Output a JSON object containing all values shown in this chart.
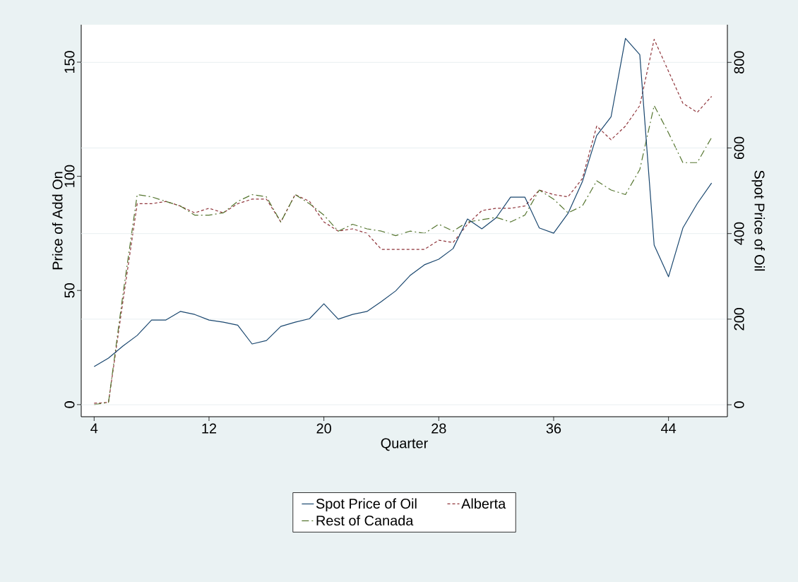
{
  "chart_data": {
    "type": "line",
    "xlabel": "Quarter",
    "ylabel": "Price of Add On",
    "y2label": "Spot Price of Oil",
    "x": [
      4,
      5,
      6,
      7,
      8,
      9,
      10,
      11,
      12,
      13,
      14,
      15,
      16,
      17,
      18,
      19,
      20,
      21,
      22,
      23,
      24,
      25,
      26,
      27,
      28,
      29,
      30,
      31,
      32,
      33,
      34,
      35,
      36,
      37,
      38,
      39,
      40,
      41,
      42,
      43,
      44,
      45,
      46,
      47
    ],
    "xlim": [
      3.1,
      48.1
    ],
    "xticks": [
      4,
      12,
      20,
      28,
      36,
      44
    ],
    "ylim": [
      -5.3,
      166.4
    ],
    "yticks": [
      0,
      50,
      100,
      150
    ],
    "y2lim": [
      -28,
      888
    ],
    "y2ticks": [
      0,
      200,
      400,
      600,
      800
    ],
    "grid": "y2",
    "legend": "bottom",
    "series": [
      {
        "name": "Spot Price of Oil",
        "color": "#1a476f",
        "axis": "y2",
        "line_style": "solid",
        "values": [
          89,
          109,
          137,
          162,
          198,
          198,
          218,
          211,
          198,
          193,
          186,
          142,
          150,
          183,
          193,
          201,
          236,
          200,
          211,
          218,
          241,
          266,
          302,
          327,
          340,
          365,
          434,
          411,
          437,
          485,
          485,
          413,
          401,
          447,
          521,
          629,
          673,
          856,
          818,
          373,
          299,
          413,
          470,
          518
        ]
      },
      {
        "name": "Alberta",
        "color": "#90353b",
        "axis": "y",
        "line_style": "dashed",
        "values": [
          0.6,
          1,
          45,
          88,
          88,
          89,
          87,
          84,
          86,
          84,
          88,
          90,
          90,
          80,
          92,
          89,
          80,
          76,
          77,
          75,
          68,
          68,
          68,
          68,
          72,
          71,
          79,
          85,
          86,
          86,
          87,
          94,
          92,
          91,
          99,
          122,
          116,
          122,
          131,
          160,
          146,
          132,
          128,
          135
        ]
      },
      {
        "name": "Rest of Canada",
        "color": "#55752f",
        "axis": "y",
        "line_style": "dashdot",
        "values": [
          0,
          1,
          48,
          92,
          91,
          89,
          87,
          83,
          83,
          84,
          89,
          92,
          91,
          80,
          92,
          88,
          83,
          76,
          79,
          77,
          76,
          74,
          76,
          75,
          79,
          76,
          80,
          81,
          82,
          80,
          83,
          94,
          90,
          84,
          87,
          98,
          94,
          92,
          103,
          131,
          119,
          106,
          106,
          117
        ]
      }
    ]
  }
}
